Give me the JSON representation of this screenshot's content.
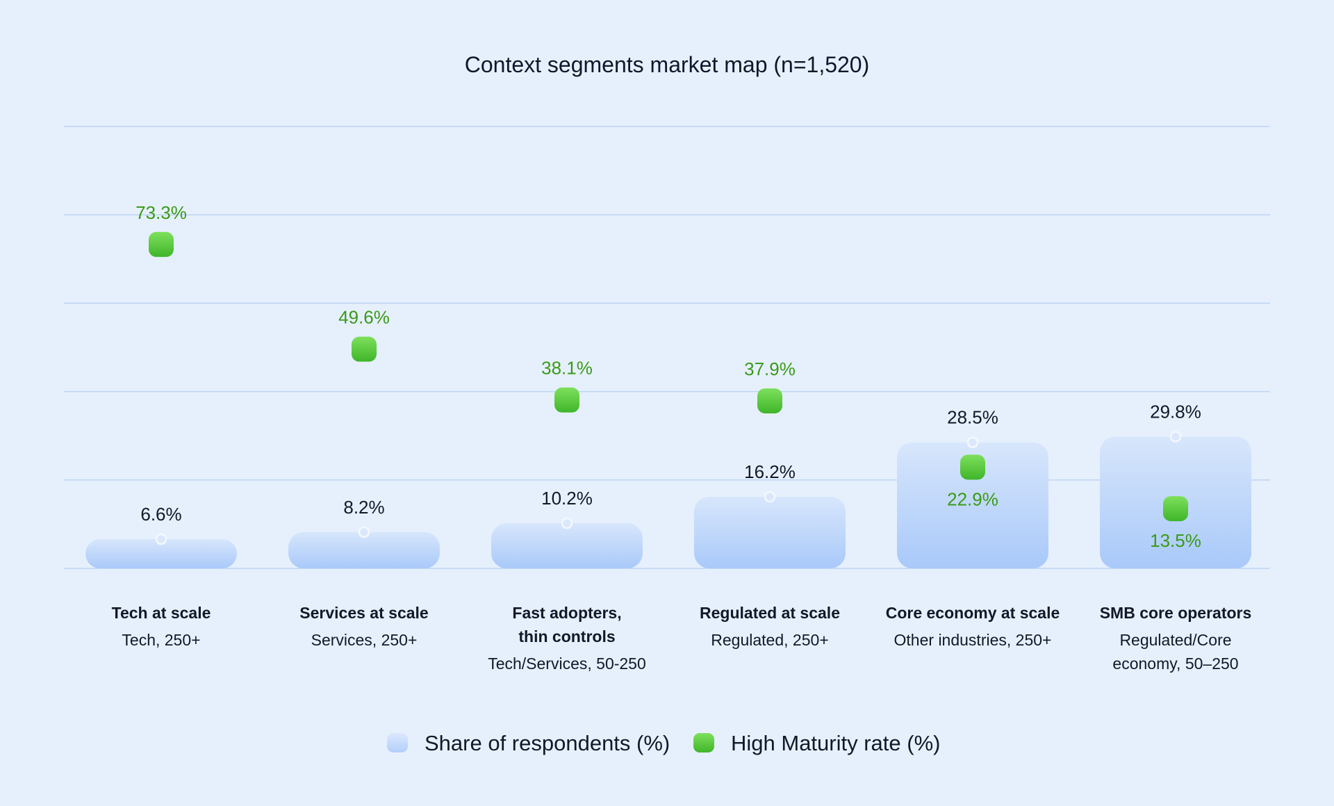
{
  "chart_data": {
    "type": "bar",
    "title": "Context segments market map (n=1,520)",
    "ylim": [
      0,
      100
    ],
    "grid": true,
    "legend_position": "bottom",
    "categories": [
      {
        "name": [
          "Tech at scale"
        ],
        "sub": [
          "Tech, 250+"
        ]
      },
      {
        "name": [
          "Services at scale"
        ],
        "sub": [
          "Services, 250+"
        ]
      },
      {
        "name": [
          "Fast adopters,",
          "thin controls"
        ],
        "sub": [
          "Tech/Services, 50-250"
        ]
      },
      {
        "name": [
          "Regulated at scale"
        ],
        "sub": [
          "Regulated, 250+"
        ]
      },
      {
        "name": [
          "Core economy at scale"
        ],
        "sub": [
          "Other industries, 250+"
        ]
      },
      {
        "name": [
          "SMB core operators"
        ],
        "sub": [
          "Regulated/Core",
          "economy, 50–250"
        ]
      }
    ],
    "series": [
      {
        "name": "Share of respondents (%)",
        "values": [
          6.6,
          8.2,
          10.2,
          16.2,
          28.5,
          29.8
        ],
        "labels": [
          "6.6%",
          "8.2%",
          "10.2%",
          "16.2%",
          "28.5%",
          "29.8%"
        ],
        "color": "#b4d0fb"
      },
      {
        "name": "High Maturity rate (%)",
        "values": [
          73.3,
          49.6,
          38.1,
          37.9,
          22.9,
          13.5
        ],
        "labels": [
          "73.3%",
          "49.6%",
          "38.1%",
          "37.9%",
          "22.9%",
          "13.5%"
        ],
        "color": "#4fc636"
      }
    ]
  }
}
